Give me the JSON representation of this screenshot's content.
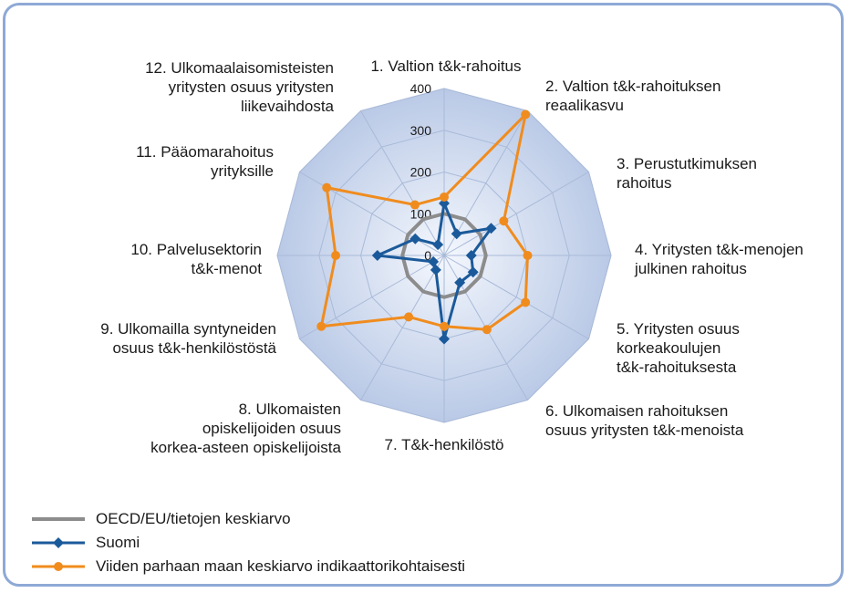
{
  "chart_data": {
    "type": "radar",
    "rmax": 400,
    "ticks": [
      0,
      100,
      200,
      300,
      400
    ],
    "grid": true,
    "indicators": [
      [
        "1. Valtion t&k-rahoitus"
      ],
      [
        "2. Valtion t&k-rahoituksen",
        "reaalikasvu"
      ],
      [
        "3. Perustutkimuksen",
        "rahoitus"
      ],
      [
        "4. Yritysten t&k-menojen",
        "julkinen rahoitus"
      ],
      [
        "5. Yritysten osuus",
        "korkeakoulujen",
        "t&k-rahoituksesta"
      ],
      [
        "6. Ulkomaisen rahoituksen",
        "osuus yritysten t&k-menoista"
      ],
      [
        "7. T&k-henkilöstö"
      ],
      [
        "8. Ulkomaisten",
        "opiskelijoiden osuus",
        "korkea-asteen opiskelijoista"
      ],
      [
        "9. Ulkomailla syntyneiden",
        "osuus t&k-henkilöstöstä"
      ],
      [
        "10. Palvelusektorin",
        "t&k-menot"
      ],
      [
        "11. Pääomarahoitus",
        "yrityksille"
      ],
      [
        "12. Ulkomaalaisomisteisten",
        "yritysten osuus yritysten",
        "liikevaihdosta"
      ]
    ],
    "series": [
      {
        "name": "OECD/EU/tietojen keskiarvo",
        "color": "#8c8c8c",
        "values": [
          100,
          100,
          100,
          100,
          100,
          100,
          100,
          100,
          100,
          100,
          100,
          100
        ]
      },
      {
        "name": "Suomi",
        "color": "#1b5a9a",
        "values": [
          125,
          60,
          130,
          65,
          80,
          75,
          200,
          40,
          30,
          160,
          80,
          30
        ]
      },
      {
        "name": "Viiden parhaan maan keskiarvo indikaattorikohtaisesti",
        "color": "#f08c1e",
        "values": [
          140,
          390,
          165,
          200,
          225,
          205,
          170,
          170,
          340,
          260,
          325,
          140
        ]
      }
    ]
  },
  "legend": {
    "items": [
      "OECD/EU/tietojen keskiarvo",
      "Suomi",
      "Viiden parhaan maan keskiarvo indikaattorikohtaisesti"
    ]
  }
}
